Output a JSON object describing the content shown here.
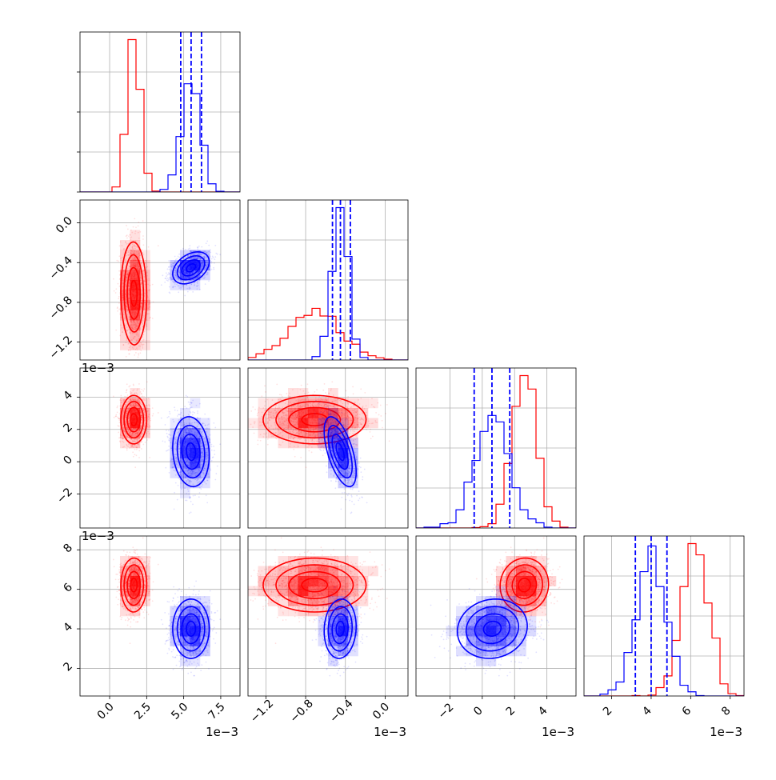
{
  "colors": {
    "red": "#ff0000",
    "blue": "#0000ff",
    "grid": "#b0b0b0"
  },
  "chart_data": {
    "type": "scatter",
    "grid": true,
    "series": [
      {
        "color": "red",
        "mean": [
          0.00165,
          -0.0007,
          0.0026,
          0.0062
        ],
        "sd": [
          0.00045,
          0.00026,
          0.00073,
          0.0007
        ],
        "corr": [
          [
            1,
            -0.1,
            0,
            0
          ],
          [
            -0.1,
            1,
            0,
            0
          ],
          [
            0,
            0,
            1,
            0
          ],
          [
            0,
            0,
            0,
            1
          ]
        ]
      },
      {
        "color": "blue",
        "mean": [
          0.0055,
          -0.00045,
          0.0006,
          0.004
        ],
        "sd": [
          0.0006,
          8e-05,
          0.0011,
          0.00072
        ],
        "corr": [
          [
            1,
            0.4,
            -0.1,
            0
          ],
          [
            0.4,
            1,
            -0.6,
            0.05
          ],
          [
            -0.1,
            -0.6,
            1,
            0.1
          ],
          [
            0,
            0.05,
            0.1,
            1
          ]
        ],
        "quantile_lines": [
          [
            0.0048,
            0.0055,
            0.0062
          ],
          [
            -0.00053,
            -0.00045,
            -0.00035
          ],
          [
            -0.0005,
            0.0006,
            0.0017
          ],
          [
            0.0032,
            0.004,
            0.0048
          ]
        ]
      }
    ],
    "axes": [
      {
        "range": [
          -0.002,
          0.0088
        ],
        "ticks": [
          0,
          0.0025,
          0.005,
          0.0075
        ],
        "tick_labels": [
          "0.0",
          "2.5",
          "5.0",
          "7.5"
        ]
      },
      {
        "range": [
          -0.00138,
          0.00023
        ],
        "ticks": [
          -0.0012,
          -0.0008,
          -0.0004,
          0
        ],
        "tick_labels": [
          "−1.2",
          "−0.8",
          "−0.4",
          "0.0"
        ]
      },
      {
        "range": [
          -0.0041,
          0.0058
        ],
        "ticks": [
          -0.002,
          0,
          0.002,
          0.004
        ],
        "tick_labels": [
          "−2",
          "0",
          "2",
          "4"
        ]
      },
      {
        "range": [
          0.0006,
          0.0087
        ],
        "ticks": [
          0.002,
          0.004,
          0.006,
          0.008
        ],
        "tick_labels": [
          "2",
          "4",
          "6",
          "8"
        ]
      }
    ],
    "offset_text": "1e−3"
  }
}
